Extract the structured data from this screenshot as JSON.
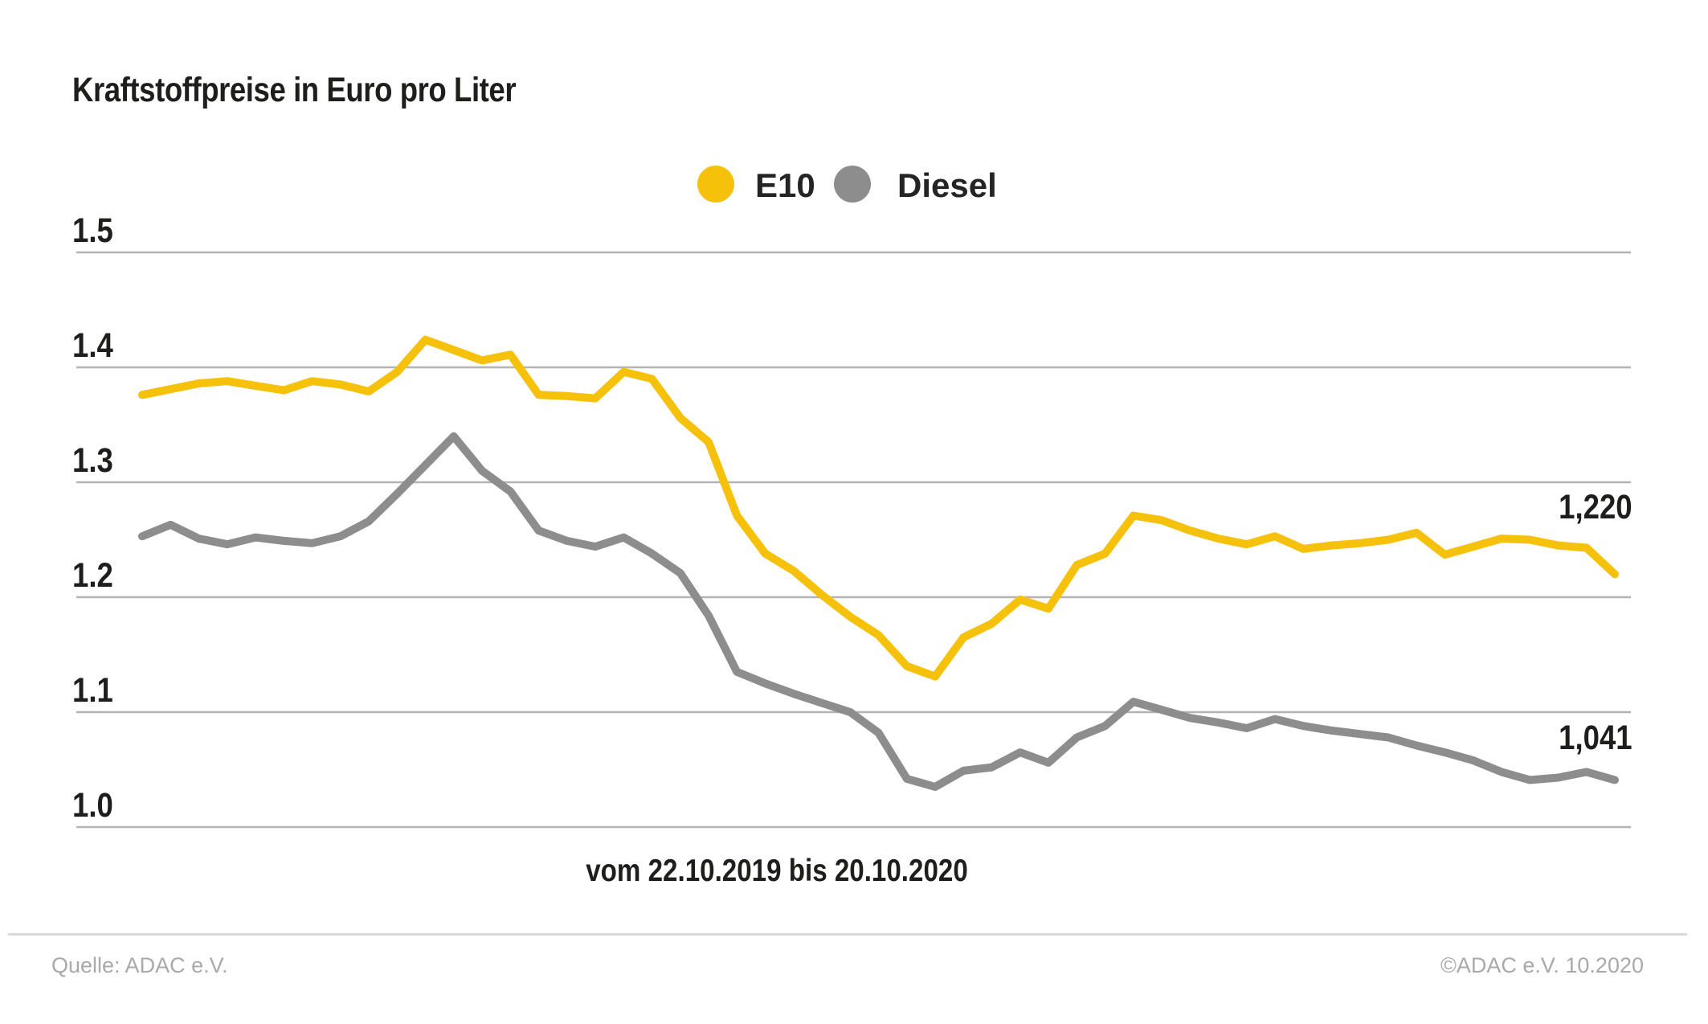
{
  "page": {
    "title": "Kraftstoffpreise in Euro pro Liter"
  },
  "legend": {
    "items": [
      {
        "label": "E10",
        "color": "#f6c10a"
      },
      {
        "label": "Diesel",
        "color": "#8d8d8d"
      }
    ]
  },
  "footer": {
    "source_left": "Quelle: ADAC e.V.",
    "copyright_right": "©ADAC e.V. 10.2020"
  },
  "colors": {
    "e10_yellow": "#f6c10a",
    "diesel_gray": "#8d8d8d",
    "gridline": "#b3b3b3",
    "dark_text": "#1e1e1c",
    "footer_gray": "#a9a9a9",
    "footer_rule": "#dadada"
  },
  "chart_data": {
    "type": "line",
    "title": "Kraftstoffpreise in Euro pro Liter",
    "x_range_label": "vom 22.10.2019 bis 20.10.2020",
    "x_description": "53 weekly values from 22.10.2019 to 20.10.2020",
    "ylabel": "Euro pro Liter",
    "ylim": [
      1.0,
      1.5
    ],
    "grid": true,
    "legend_position": "top-center",
    "y_ticks": [
      {
        "label": "1.5",
        "value": 1.5
      },
      {
        "label": "1.4",
        "value": 1.4
      },
      {
        "label": "1.3",
        "value": 1.3
      },
      {
        "label": "1.2",
        "value": 1.2
      },
      {
        "label": "1.1",
        "value": 1.1
      },
      {
        "label": "1.0",
        "value": 1.0
      }
    ],
    "series": [
      {
        "name": "E10",
        "color": "#f6c10a",
        "end_label": "1,220",
        "last_value": 1.22,
        "values": [
          1.376,
          1.381,
          1.386,
          1.388,
          1.384,
          1.38,
          1.388,
          1.385,
          1.379,
          1.396,
          1.424,
          1.415,
          1.406,
          1.411,
          1.376,
          1.375,
          1.373,
          1.396,
          1.39,
          1.356,
          1.335,
          1.271,
          1.238,
          1.223,
          1.202,
          1.183,
          1.167,
          1.14,
          1.131,
          1.165,
          1.177,
          1.198,
          1.19,
          1.228,
          1.238,
          1.271,
          1.267,
          1.258,
          1.251,
          1.246,
          1.253,
          1.242,
          1.245,
          1.247,
          1.25,
          1.256,
          1.237,
          1.244,
          1.251,
          1.25,
          1.245,
          1.243,
          1.22
        ]
      },
      {
        "name": "Diesel",
        "color": "#8d8d8d",
        "end_label": "1,041",
        "last_value": 1.041,
        "values": [
          1.253,
          1.263,
          1.251,
          1.246,
          1.252,
          1.249,
          1.247,
          1.253,
          1.266,
          1.29,
          1.315,
          1.34,
          1.31,
          1.292,
          1.258,
          1.249,
          1.244,
          1.252,
          1.238,
          1.221,
          1.184,
          1.135,
          1.125,
          1.116,
          1.108,
          1.1,
          1.082,
          1.042,
          1.035,
          1.049,
          1.052,
          1.065,
          1.056,
          1.078,
          1.088,
          1.109,
          1.102,
          1.095,
          1.091,
          1.086,
          1.094,
          1.088,
          1.084,
          1.081,
          1.078,
          1.071,
          1.065,
          1.058,
          1.048,
          1.041,
          1.043,
          1.048,
          1.041
        ]
      }
    ]
  }
}
